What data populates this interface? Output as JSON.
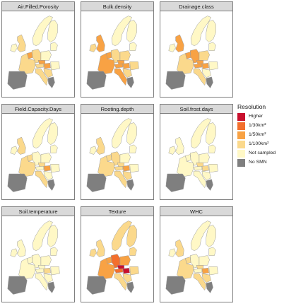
{
  "colors": {
    "Higher": "#c8102e",
    "1/30km²": "#f36f2d",
    "1/50km²": "#f8a244",
    "1/100km²": "#fbd98c",
    "Not sampled": "#fff8c6",
    "No SMN": "#7f7f7f"
  },
  "legend": {
    "title": "Resolution",
    "items": [
      "Higher",
      "1/30km²",
      "1/50km²",
      "1/100km²",
      "Not sampled",
      "No SMN"
    ]
  },
  "panels": [
    {
      "title": "Air.Filled.Porosity",
      "regions": {
        "iberia": "No SMN",
        "france": "1/100km²",
        "britain": "1/100km²",
        "ireland": "Not sampled",
        "benelux": "1/50km²",
        "germany": "1/100km²",
        "poland": "Not sampled",
        "czech": "1/50km²",
        "austria": "1/100km²",
        "hungary": "1/50km²",
        "italy": "1/100km²",
        "balkans": "1/100km²",
        "greece": "No SMN",
        "scandinavia": "Not sampled",
        "finland": "Not sampled",
        "baltics": "Not sampled",
        "romania": "Not sampled"
      }
    },
    {
      "title": "Bulk.density",
      "regions": {
        "iberia": "No SMN",
        "france": "1/50km²",
        "britain": "1/50km²",
        "ireland": "1/100km²",
        "benelux": "1/50km²",
        "germany": "1/100km²",
        "poland": "1/100km²",
        "czech": "1/50km²",
        "austria": "1/50km²",
        "hungary": "1/50km²",
        "italy": "1/50km²",
        "balkans": "1/100km²",
        "greece": "No SMN",
        "scandinavia": "Not sampled",
        "finland": "Not sampled",
        "baltics": "Not sampled",
        "romania": "1/100km²"
      }
    },
    {
      "title": "Drainage.class",
      "regions": {
        "iberia": "No SMN",
        "france": "1/100km²",
        "britain": "1/50km²",
        "ireland": "Not sampled",
        "benelux": "1/50km²",
        "germany": "1/50km²",
        "poland": "1/100km²",
        "czech": "1/50km²",
        "austria": "1/50km²",
        "hungary": "1/50km²",
        "italy": "1/100km²",
        "balkans": "Not sampled",
        "greece": "No SMN",
        "scandinavia": "Not sampled",
        "finland": "Not sampled",
        "baltics": "Not sampled",
        "romania": "Not sampled"
      }
    },
    {
      "title": "Field.Capacity.Days",
      "regions": {
        "iberia": "No SMN",
        "france": "1/100km²",
        "britain": "1/100km²",
        "ireland": "Not sampled",
        "benelux": "1/100km²",
        "germany": "Not sampled",
        "poland": "Not sampled",
        "czech": "1/100km²",
        "austria": "Not sampled",
        "hungary": "1/50km²",
        "italy": "1/100km²",
        "balkans": "Not sampled",
        "greece": "No SMN",
        "scandinavia": "Not sampled",
        "finland": "Not sampled",
        "baltics": "Not sampled",
        "romania": "Not sampled"
      }
    },
    {
      "title": "Rooting.depth",
      "regions": {
        "iberia": "No SMN",
        "france": "1/100km²",
        "britain": "1/100km²",
        "ireland": "Not sampled",
        "benelux": "1/100km²",
        "germany": "1/100km²",
        "poland": "Not sampled",
        "czech": "1/100km²",
        "austria": "1/100km²",
        "hungary": "1/50km²",
        "italy": "1/100km²",
        "balkans": "1/100km²",
        "greece": "No SMN",
        "scandinavia": "Not sampled",
        "finland": "Not sampled",
        "baltics": "Not sampled",
        "romania": "Not sampled"
      }
    },
    {
      "title": "Soil.frost.days",
      "regions": {
        "iberia": "No SMN",
        "france": "Not sampled",
        "britain": "Not sampled",
        "ireland": "Not sampled",
        "benelux": "Not sampled",
        "germany": "Not sampled",
        "poland": "Not sampled",
        "czech": "1/100km²",
        "austria": "Not sampled",
        "hungary": "1/100km²",
        "italy": "Not sampled",
        "balkans": "Not sampled",
        "greece": "No SMN",
        "scandinavia": "Not sampled",
        "finland": "Not sampled",
        "baltics": "Not sampled",
        "romania": "Not sampled"
      }
    },
    {
      "title": "Soil.temperature",
      "regions": {
        "iberia": "No SMN",
        "france": "Not sampled",
        "britain": "Not sampled",
        "ireland": "Not sampled",
        "benelux": "Not sampled",
        "germany": "Not sampled",
        "poland": "Not sampled",
        "czech": "Not sampled",
        "austria": "Not sampled",
        "hungary": "1/100km²",
        "italy": "Not sampled",
        "balkans": "Not sampled",
        "greece": "No SMN",
        "scandinavia": "Not sampled",
        "finland": "Not sampled",
        "baltics": "Not sampled",
        "romania": "Not sampled"
      }
    },
    {
      "title": "Texture",
      "regions": {
        "iberia": "No SMN",
        "france": "1/50km²",
        "britain": "1/100km²",
        "ireland": "1/100km²",
        "benelux": "1/50km²",
        "germany": "1/30km²",
        "poland": "1/50km²",
        "czech": "Higher",
        "austria": "1/30km²",
        "hungary": "Higher",
        "italy": "1/100km²",
        "balkans": "1/100km²",
        "greece": "No SMN",
        "scandinavia": "1/100km²",
        "finland": "1/100km²",
        "baltics": "1/100km²",
        "romania": "1/100km²"
      }
    },
    {
      "title": "WHC",
      "regions": {
        "iberia": "No SMN",
        "france": "1/100km²",
        "britain": "1/100km²",
        "ireland": "Not sampled",
        "benelux": "1/100km²",
        "germany": "Not sampled",
        "poland": "Not sampled",
        "czech": "1/100km²",
        "austria": "Not sampled",
        "hungary": "1/50km²",
        "italy": "1/100km²",
        "balkans": "1/100km²",
        "greece": "No SMN",
        "scandinavia": "Not sampled",
        "finland": "Not sampled",
        "baltics": "Not sampled",
        "romania": "Not sampled"
      }
    }
  ]
}
